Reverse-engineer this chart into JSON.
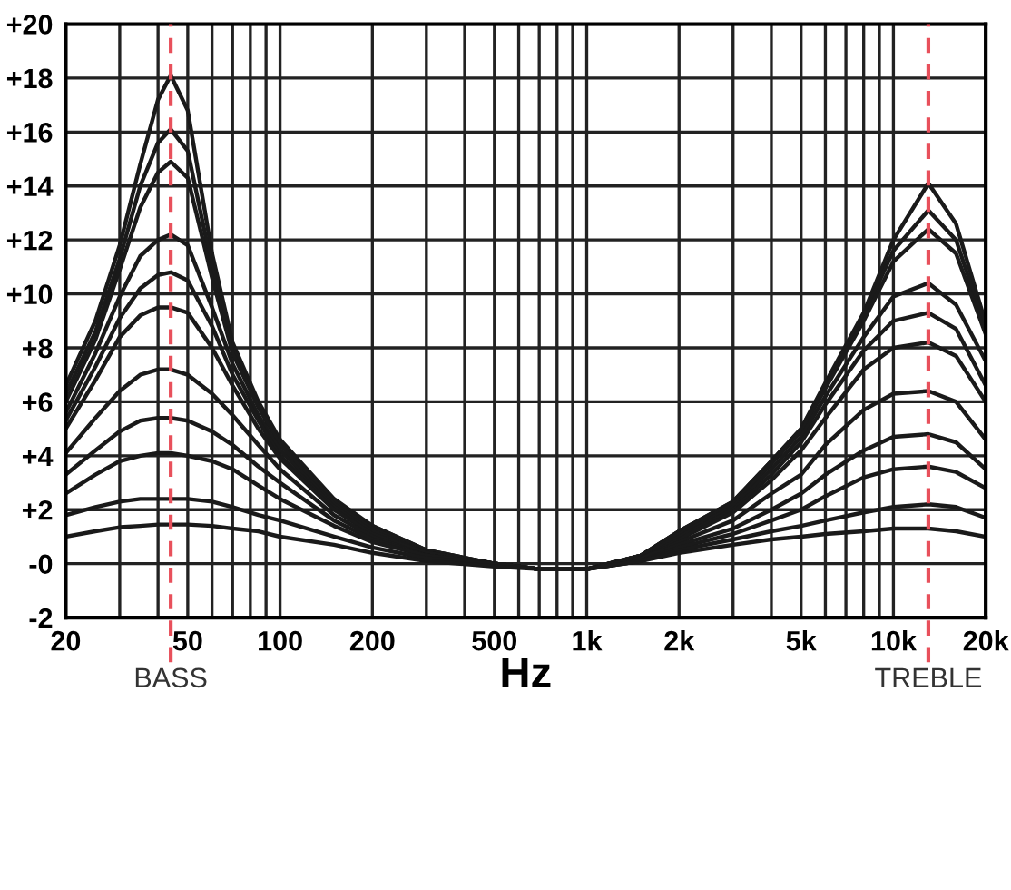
{
  "chart_data": {
    "type": "line",
    "xlabel": "Hz",
    "log": "x",
    "x": [
      20,
      25,
      30,
      35,
      40,
      44,
      50,
      60,
      70,
      85,
      100,
      150,
      200,
      300,
      500,
      700,
      1000,
      1500,
      2000,
      3000,
      4000,
      5000,
      6000,
      8000,
      10000,
      13000,
      16000,
      20000
    ],
    "series": [
      {
        "color": "#1a1a1a",
        "values": [
          6.6,
          9.0,
          11.8,
          14.8,
          17.2,
          18.1,
          16.8,
          11.5,
          8.2,
          6.0,
          4.6,
          2.4,
          1.4,
          0.5,
          0.0,
          -0.2,
          -0.2,
          0.3,
          1.2,
          2.3,
          3.8,
          5.0,
          6.7,
          9.3,
          12.0,
          14.1,
          12.6,
          8.9
        ]
      },
      {
        "color": "#1a1a1a",
        "values": [
          6.3,
          8.6,
          11.3,
          14.0,
          15.6,
          16.1,
          15.3,
          11.0,
          8.0,
          5.9,
          4.5,
          2.3,
          1.4,
          0.5,
          0.0,
          -0.2,
          -0.2,
          0.3,
          1.2,
          2.3,
          3.8,
          5.0,
          6.6,
          9.2,
          11.6,
          13.1,
          12.0,
          8.7
        ]
      },
      {
        "color": "#1a1a1a",
        "values": [
          6.0,
          8.3,
          10.9,
          13.2,
          14.5,
          14.9,
          14.3,
          10.6,
          7.8,
          5.8,
          4.4,
          2.3,
          1.3,
          0.5,
          0.0,
          -0.2,
          -0.2,
          0.3,
          1.2,
          2.2,
          3.7,
          4.9,
          6.5,
          9.0,
          11.2,
          12.4,
          11.5,
          8.5
        ]
      },
      {
        "color": "#1a1a1a",
        "values": [
          5.6,
          7.8,
          9.9,
          11.4,
          12.0,
          12.2,
          11.8,
          9.5,
          7.4,
          5.5,
          4.2,
          2.2,
          1.3,
          0.4,
          0.0,
          -0.2,
          -0.2,
          0.3,
          1.1,
          2.1,
          3.5,
          4.7,
          6.2,
          8.4,
          9.9,
          10.4,
          9.6,
          7.5
        ]
      },
      {
        "color": "#1a1a1a",
        "values": [
          5.3,
          7.3,
          9.1,
          10.2,
          10.7,
          10.8,
          10.5,
          8.8,
          7.0,
          5.3,
          4.0,
          2.1,
          1.2,
          0.4,
          0.0,
          -0.2,
          -0.2,
          0.3,
          1.0,
          2.0,
          3.3,
          4.5,
          5.9,
          7.9,
          9.0,
          9.3,
          8.7,
          6.6
        ]
      },
      {
        "color": "#1a1a1a",
        "values": [
          5.0,
          6.8,
          8.4,
          9.2,
          9.5,
          9.5,
          9.3,
          8.0,
          6.6,
          5.0,
          3.9,
          2.0,
          1.1,
          0.4,
          0.0,
          -0.2,
          -0.2,
          0.2,
          0.9,
          1.9,
          3.1,
          4.2,
          5.4,
          7.2,
          8.0,
          8.2,
          7.7,
          6.0
        ]
      },
      {
        "color": "#1a1a1a",
        "values": [
          4.1,
          5.4,
          6.4,
          7.0,
          7.2,
          7.2,
          7.0,
          6.3,
          5.5,
          4.4,
          3.5,
          1.8,
          1.0,
          0.3,
          0.0,
          -0.2,
          -0.2,
          0.2,
          0.8,
          1.6,
          2.6,
          3.3,
          4.4,
          5.7,
          6.3,
          6.4,
          6.0,
          4.6
        ]
      },
      {
        "color": "#1a1a1a",
        "values": [
          3.3,
          4.2,
          4.9,
          5.3,
          5.4,
          5.4,
          5.3,
          4.9,
          4.4,
          3.6,
          3.0,
          1.6,
          0.9,
          0.3,
          0.0,
          -0.2,
          -0.2,
          0.2,
          0.7,
          1.3,
          2.0,
          2.6,
          3.3,
          4.2,
          4.7,
          4.8,
          4.5,
          3.5
        ]
      },
      {
        "color": "#1a1a1a",
        "values": [
          2.6,
          3.3,
          3.8,
          4.0,
          4.1,
          4.1,
          4.0,
          3.8,
          3.5,
          2.9,
          2.4,
          1.4,
          0.8,
          0.3,
          0.0,
          -0.2,
          -0.2,
          0.1,
          0.6,
          1.1,
          1.6,
          2.0,
          2.5,
          3.2,
          3.5,
          3.6,
          3.4,
          2.8
        ]
      },
      {
        "color": "#1a1a1a",
        "values": [
          1.8,
          2.1,
          2.3,
          2.4,
          2.4,
          2.4,
          2.4,
          2.3,
          2.1,
          1.8,
          1.6,
          1.0,
          0.6,
          0.2,
          0.0,
          -0.2,
          -0.2,
          0.1,
          0.5,
          0.9,
          1.2,
          1.4,
          1.6,
          1.9,
          2.1,
          2.2,
          2.1,
          1.7
        ]
      },
      {
        "color": "#1a1a1a",
        "values": [
          1.0,
          1.2,
          1.35,
          1.4,
          1.45,
          1.45,
          1.45,
          1.4,
          1.3,
          1.2,
          1.0,
          0.7,
          0.4,
          0.1,
          -0.1,
          -0.2,
          -0.2,
          0.1,
          0.4,
          0.7,
          0.9,
          1.0,
          1.1,
          1.2,
          1.3,
          1.3,
          1.2,
          1.0
        ]
      }
    ],
    "xlim": [
      20,
      20000
    ],
    "xticks": [
      20,
      {
        "value": 30,
        "label": null
      },
      {
        "value": 40,
        "label": null
      },
      50,
      {
        "value": 60,
        "label": null
      },
      {
        "value": 70,
        "label": null
      },
      {
        "value": 80,
        "label": null
      },
      {
        "value": 90,
        "label": null
      },
      100,
      200,
      {
        "value": 300,
        "label": null
      },
      {
        "value": 400,
        "label": null
      },
      500,
      {
        "value": 600,
        "label": null
      },
      {
        "value": 700,
        "label": null
      },
      {
        "value": 800,
        "label": null
      },
      {
        "value": 900,
        "label": null
      },
      {
        "value": 1000,
        "label": "1k"
      },
      {
        "value": 2000,
        "label": "2k"
      },
      {
        "value": 3000,
        "label": null
      },
      {
        "value": 4000,
        "label": null
      },
      {
        "value": 5000,
        "label": "5k"
      },
      {
        "value": 6000,
        "label": null
      },
      {
        "value": 7000,
        "label": null
      },
      {
        "value": 8000,
        "label": null
      },
      {
        "value": 9000,
        "label": null
      },
      {
        "value": 10000,
        "label": "10k"
      },
      {
        "value": 20000,
        "label": "20k"
      }
    ],
    "ylim": [
      -2,
      20
    ],
    "yticks": [
      -2,
      {
        "value": 0,
        "label": "-0"
      },
      {
        "value": 2,
        "label": "+2"
      },
      {
        "value": 4,
        "label": "+4"
      },
      {
        "value": 6,
        "label": "+6"
      },
      {
        "value": 8,
        "label": "+8"
      },
      {
        "value": 10,
        "label": "+10"
      },
      {
        "value": 12,
        "label": "+12"
      },
      {
        "value": 14,
        "label": "+14"
      },
      {
        "value": 16,
        "label": "+16"
      },
      {
        "value": 18,
        "label": "+18"
      },
      {
        "value": 20,
        "label": "+20"
      }
    ],
    "grid": true,
    "line_style": "solid",
    "ref_lines": [
      {
        "axis": "x",
        "value": 44,
        "label": "BASS",
        "color": "#e8505b",
        "line_style": "dashed"
      },
      {
        "axis": "x",
        "value": 13000,
        "label": "TREBLE",
        "color": "#e8505b",
        "line_style": "dashed"
      }
    ]
  }
}
